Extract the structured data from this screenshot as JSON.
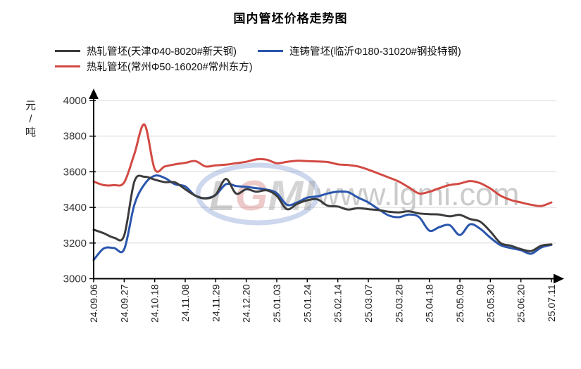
{
  "title": "国内管坯价格走势图",
  "y_axis": {
    "unit_chars": [
      "元",
      "/",
      "吨"
    ],
    "tick_labels": [
      "4000",
      "3800",
      "3600",
      "3400",
      "3200",
      "3000"
    ]
  },
  "legend": [
    {
      "label": "热轧管坯(天津Φ40-8020#新天钢)",
      "color": "#3c3c3c"
    },
    {
      "label": "连铸管坯(临沂Φ180-31020#钢投特钢)",
      "color": "#2a56ad"
    },
    {
      "label": "热轧管坯(常州Φ50-16020#常州东方)",
      "color": "#d24a43"
    }
  ],
  "watermark": {
    "logo_letters": [
      "L",
      "G",
      "M",
      "I"
    ],
    "url": "www.lgmi.com"
  },
  "chart_data": {
    "type": "line",
    "title": "国内管坯价格走势图",
    "ylabel": "元/吨",
    "ylim": [
      3000,
      4000
    ],
    "y_ticks": [
      3000,
      3200,
      3400,
      3600,
      3800,
      4000
    ],
    "grid": "horizontal",
    "legend_position": "top-left",
    "x_tick_labels": [
      "24.09.06",
      "24.09.27",
      "24.10.18",
      "24.11.08",
      "24.11.29",
      "24.12.20",
      "25.01.03",
      "25.01.24",
      "25.02.14",
      "25.03.07",
      "25.03.28",
      "25.04.18",
      "25.05.09",
      "25.05.30",
      "25.06.20",
      "25.07.11"
    ],
    "samples_per_tick_interval": 3,
    "series": [
      {
        "name": "热轧管坯(天津Φ40-8020#新天钢)",
        "color": "#3c3c3c",
        "values": [
          3275,
          3255,
          3230,
          3242,
          3545,
          3572,
          3556,
          3542,
          3540,
          3502,
          3466,
          3450,
          3472,
          3560,
          3478,
          3502,
          3488,
          3496,
          3465,
          3390,
          3420,
          3440,
          3445,
          3410,
          3405,
          3388,
          3396,
          3390,
          3385,
          3376,
          3372,
          3378,
          3366,
          3362,
          3360,
          3350,
          3358,
          3335,
          3320,
          3265,
          3200,
          3185,
          3166,
          3155,
          3185,
          3192
        ]
      },
      {
        "name": "连铸管坯(临沂Φ180-31020#钢投特钢)",
        "color": "#2a56ad",
        "values": [
          3105,
          3170,
          3172,
          3165,
          3415,
          3530,
          3578,
          3565,
          3530,
          3518,
          3466,
          3452,
          3470,
          3530,
          3520,
          3515,
          3508,
          3500,
          3480,
          3415,
          3428,
          3455,
          3462,
          3478,
          3488,
          3486,
          3455,
          3428,
          3390,
          3355,
          3345,
          3360,
          3345,
          3270,
          3290,
          3300,
          3245,
          3305,
          3280,
          3230,
          3188,
          3172,
          3160,
          3140,
          3175,
          3190
        ]
      },
      {
        "name": "热轧管坯(常州Φ50-16020#常州东方)",
        "color": "#d24a43",
        "values": [
          3545,
          3525,
          3525,
          3540,
          3700,
          3865,
          3615,
          3630,
          3642,
          3650,
          3660,
          3630,
          3636,
          3640,
          3648,
          3656,
          3670,
          3668,
          3648,
          3656,
          3662,
          3660,
          3658,
          3655,
          3642,
          3638,
          3630,
          3612,
          3590,
          3568,
          3545,
          3512,
          3478,
          3488,
          3508,
          3526,
          3534,
          3548,
          3536,
          3506,
          3466,
          3442,
          3428,
          3415,
          3408,
          3428
        ]
      }
    ]
  }
}
